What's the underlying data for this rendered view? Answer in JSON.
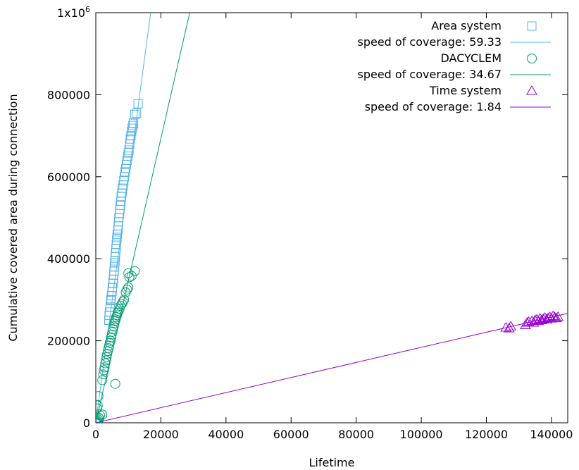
{
  "chart_data": {
    "type": "scatter",
    "xlabel": "Lifetime",
    "ylabel": "Cumulative covered area during connection",
    "xlim": [
      0,
      145000
    ],
    "ylim": [
      0,
      1000000
    ],
    "x_ticks": [
      {
        "value": 0,
        "label": "0"
      },
      {
        "value": 20000,
        "label": "20000"
      },
      {
        "value": 40000,
        "label": "40000"
      },
      {
        "value": 60000,
        "label": "60000"
      },
      {
        "value": 80000,
        "label": "80000"
      },
      {
        "value": 100000,
        "label": "100000"
      },
      {
        "value": 120000,
        "label": "120000"
      },
      {
        "value": 140000,
        "label": "140000"
      }
    ],
    "y_ticks": [
      {
        "value": 0,
        "label": "0"
      },
      {
        "value": 200000,
        "label": "200000"
      },
      {
        "value": 400000,
        "label": "400000"
      },
      {
        "value": 600000,
        "label": "600000"
      },
      {
        "value": 800000,
        "label": "800000"
      }
    ],
    "y_top_label": {
      "mantissa": "1x10",
      "exponent": "6"
    },
    "grid": false,
    "legend_position": "top-right",
    "series": [
      {
        "name": "Area system",
        "marker": "square",
        "color": "#56b4e9",
        "fit_label": "speed of coverage: 59.33",
        "slope": 59.33,
        "points": [
          [
            4000,
            250000
          ],
          [
            4100,
            262000
          ],
          [
            4200,
            270000
          ],
          [
            4400,
            282000
          ],
          [
            4600,
            298000
          ],
          [
            4700,
            300000
          ],
          [
            4800,
            310000
          ],
          [
            5000,
            320000
          ],
          [
            5100,
            330000
          ],
          [
            5300,
            340000
          ],
          [
            5400,
            350000
          ],
          [
            5500,
            360000
          ],
          [
            5600,
            370000
          ],
          [
            5700,
            380000
          ],
          [
            5800,
            390000
          ],
          [
            5900,
            395000
          ],
          [
            6000,
            405000
          ],
          [
            6100,
            415000
          ],
          [
            6200,
            425000
          ],
          [
            6300,
            435000
          ],
          [
            6400,
            445000
          ],
          [
            6500,
            452000
          ],
          [
            6600,
            460000
          ],
          [
            6800,
            470000
          ],
          [
            6900,
            480000
          ],
          [
            7000,
            490000
          ],
          [
            7100,
            500000
          ],
          [
            7300,
            510000
          ],
          [
            7400,
            520000
          ],
          [
            7500,
            530000
          ],
          [
            7700,
            540000
          ],
          [
            7800,
            552000
          ],
          [
            8000,
            560000
          ],
          [
            8200,
            572000
          ],
          [
            8400,
            580000
          ],
          [
            8600,
            590000
          ],
          [
            8800,
            600000
          ],
          [
            9000,
            612000
          ],
          [
            9200,
            620000
          ],
          [
            9400,
            630000
          ],
          [
            9600,
            640000
          ],
          [
            9800,
            650000
          ],
          [
            10000,
            658000
          ],
          [
            10200,
            665000
          ],
          [
            10400,
            680000
          ],
          [
            10600,
            692000
          ],
          [
            10800,
            700000
          ],
          [
            11000,
            710000
          ],
          [
            11200,
            718000
          ],
          [
            11400,
            725000
          ],
          [
            11600,
            730000
          ],
          [
            12000,
            752000
          ],
          [
            12500,
            755000
          ],
          [
            13000,
            778000
          ]
        ]
      },
      {
        "name": "DACYCLEM",
        "marker": "circle",
        "color": "#009e73",
        "fit_label": "speed of coverage: 34.67",
        "slope": 34.67,
        "points": [
          [
            0,
            0
          ],
          [
            150,
            1000
          ],
          [
            300,
            3000
          ],
          [
            500,
            5000
          ],
          [
            700,
            8000
          ],
          [
            900,
            12000
          ],
          [
            1100,
            10000
          ],
          [
            1300,
            18000
          ],
          [
            400,
            35000
          ],
          [
            600,
            42000
          ],
          [
            800,
            65000
          ],
          [
            2000,
            104000
          ],
          [
            2300,
            118000
          ],
          [
            2500,
            128000
          ],
          [
            2700,
            135000
          ],
          [
            2900,
            145000
          ],
          [
            3100,
            152000
          ],
          [
            3300,
            160000
          ],
          [
            3500,
            168000
          ],
          [
            3700,
            175000
          ],
          [
            3900,
            182000
          ],
          [
            4100,
            188000
          ],
          [
            4300,
            195000
          ],
          [
            4500,
            200000
          ],
          [
            4700,
            208000
          ],
          [
            4900,
            215000
          ],
          [
            5100,
            222000
          ],
          [
            5300,
            228000
          ],
          [
            5500,
            235000
          ],
          [
            5700,
            242000
          ],
          [
            5900,
            248000
          ],
          [
            6100,
            252000
          ],
          [
            6300,
            258000
          ],
          [
            6500,
            262000
          ],
          [
            6700,
            268000
          ],
          [
            7000,
            272000
          ],
          [
            7300,
            278000
          ],
          [
            7600,
            285000
          ],
          [
            8000,
            290000
          ],
          [
            8300,
            295000
          ],
          [
            8700,
            300000
          ],
          [
            9200,
            318000
          ],
          [
            9600,
            325000
          ],
          [
            10000,
            330000
          ],
          [
            10300,
            355000
          ],
          [
            10000,
            365000
          ],
          [
            11000,
            358000
          ],
          [
            12000,
            370000
          ],
          [
            6000,
            95000
          ],
          [
            2000,
            20000
          ]
        ]
      },
      {
        "name": "Time system",
        "marker": "triangle",
        "color": "#9400d3",
        "fit_label": "speed of coverage: 1.84",
        "slope": 1.84,
        "points": [
          [
            126000,
            232000
          ],
          [
            127000,
            230000
          ],
          [
            127500,
            235000
          ],
          [
            132000,
            238000
          ],
          [
            132500,
            244000
          ],
          [
            133000,
            246000
          ],
          [
            134000,
            248000
          ],
          [
            134500,
            244000
          ],
          [
            135000,
            250000
          ],
          [
            135500,
            252000
          ],
          [
            136000,
            248000
          ],
          [
            136500,
            254000
          ],
          [
            137000,
            250000
          ],
          [
            137500,
            253000
          ],
          [
            138000,
            256000
          ],
          [
            138500,
            252000
          ],
          [
            139000,
            255000
          ],
          [
            139500,
            258000
          ],
          [
            140000,
            254000
          ],
          [
            140500,
            260000
          ],
          [
            141000,
            257000
          ],
          [
            141500,
            255000
          ],
          [
            142000,
            258000
          ]
        ]
      }
    ]
  }
}
